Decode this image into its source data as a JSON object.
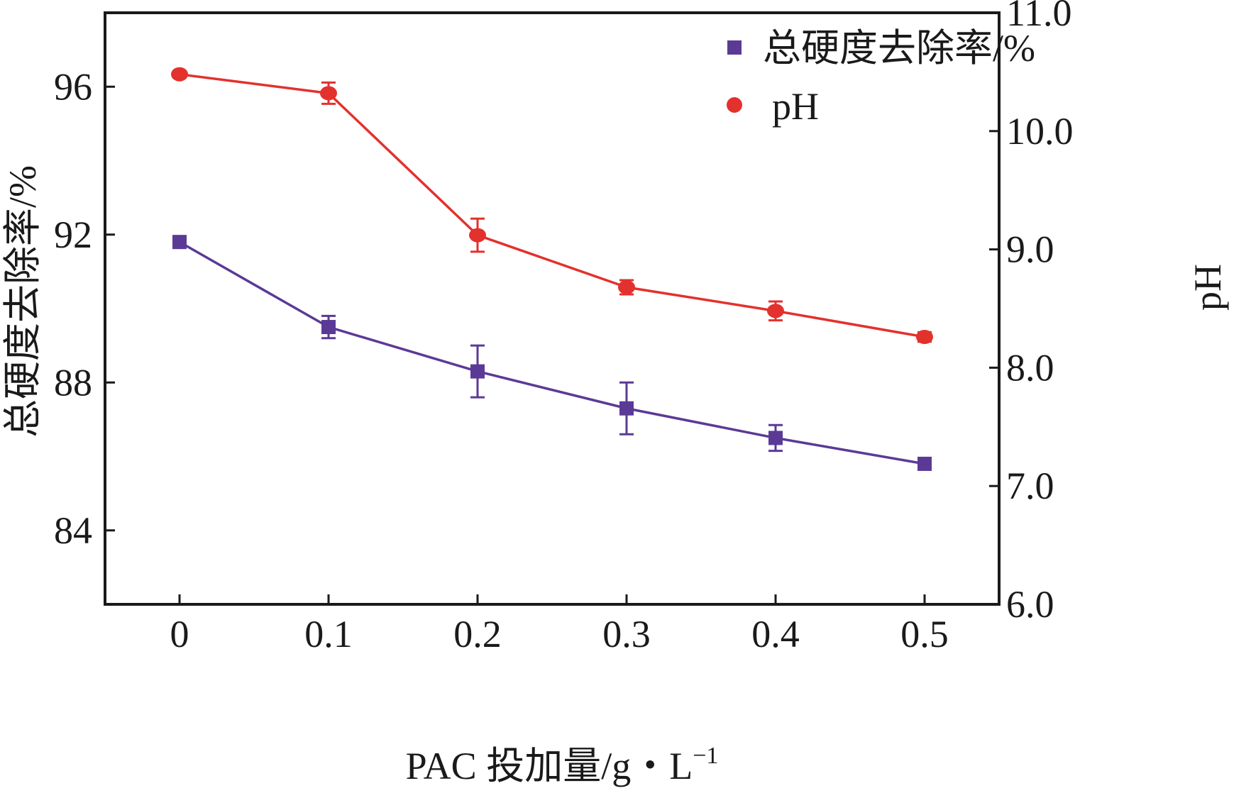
{
  "chart_data": {
    "type": "line",
    "x": [
      0,
      0.1,
      0.2,
      0.3,
      0.4,
      0.5
    ],
    "x_tick_labels": [
      "0",
      "0.1",
      "0.2",
      "0.3",
      "0.4",
      "0.5"
    ],
    "xlim": [
      -0.05,
      0.55
    ],
    "xlabel_main": "PAC 投加量/g・L",
    "xlabel_sup": "−1",
    "y_left": {
      "label": "总硬度去除率/%",
      "ylim": [
        82,
        98
      ],
      "ticks": [
        84,
        88,
        92,
        96
      ],
      "tick_labels": [
        "84",
        "88",
        "92",
        "96"
      ]
    },
    "y_right": {
      "label": "pH",
      "ylim": [
        6.0,
        11.0
      ],
      "ticks": [
        6.0,
        7.0,
        8.0,
        9.0,
        10.0,
        11.0
      ],
      "tick_labels": [
        "6.0",
        "7.0",
        "8.0",
        "9.0",
        "10.0",
        "11.0"
      ]
    },
    "series": [
      {
        "name": "总硬度去除率/%",
        "axis": "left",
        "marker": "square",
        "color": "#5b3a96",
        "values": [
          91.8,
          89.5,
          88.3,
          87.3,
          86.5,
          85.8
        ],
        "errors": [
          0,
          0.3,
          0.7,
          0.7,
          0.35,
          0.1
        ]
      },
      {
        "name": "pH",
        "axis": "right",
        "marker": "circle",
        "color": "#e3312d",
        "values": [
          10.48,
          10.32,
          9.12,
          8.68,
          8.48,
          8.26
        ],
        "errors": [
          0,
          0.09,
          0.14,
          0.06,
          0.08,
          0.04
        ]
      }
    ],
    "legend_position": "top-right"
  }
}
